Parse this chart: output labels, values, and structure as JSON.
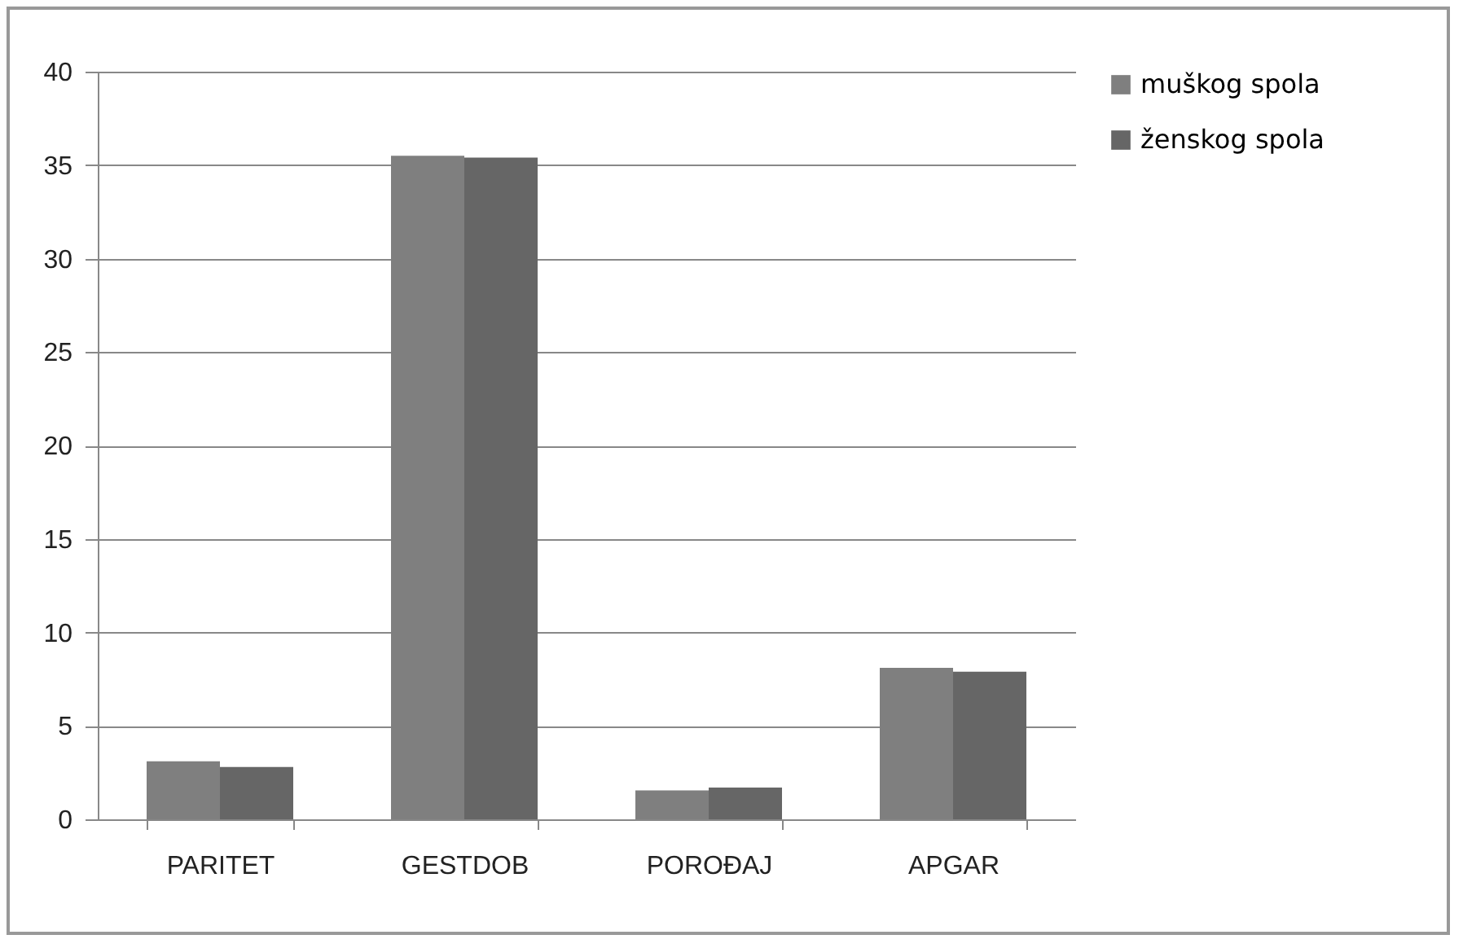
{
  "chart_data": {
    "type": "bar",
    "categories": [
      "PARITET",
      "GESTDOB",
      "POROĐAJ",
      "APGAR"
    ],
    "series": [
      {
        "name": "muškog spola",
        "color": "#7f7f7f",
        "values": [
          3.1,
          35.5,
          1.55,
          8.1
        ]
      },
      {
        "name": "ženskog spola",
        "color": "#666666",
        "values": [
          2.8,
          35.4,
          1.7,
          7.9
        ]
      }
    ],
    "ylim": [
      0,
      40
    ],
    "yticks": [
      0,
      5,
      10,
      15,
      20,
      25,
      30,
      35,
      40
    ],
    "grid": "y",
    "legend": "right"
  }
}
